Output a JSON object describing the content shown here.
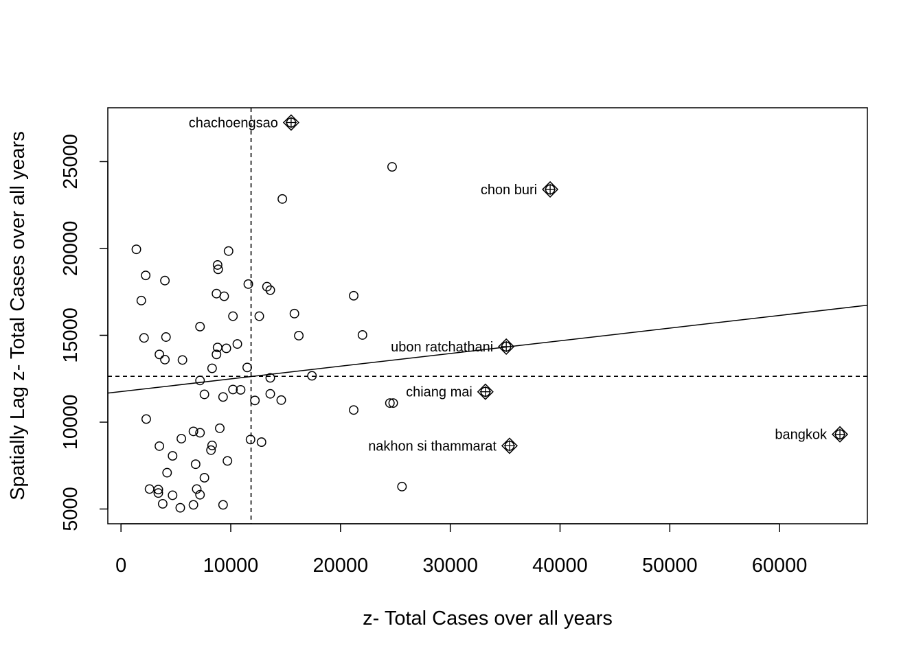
{
  "chart_data": {
    "type": "scatter",
    "title": "",
    "xlabel": "z- Total Cases over all years",
    "ylabel": "Spatially Lag z- Total Cases over all years",
    "xlim": [
      -1200,
      68000
    ],
    "ylim": [
      4150,
      28100
    ],
    "x_ticks": [
      0,
      10000,
      20000,
      30000,
      40000,
      50000,
      60000
    ],
    "x_tick_labels": [
      "0",
      "10000",
      "20000",
      "30000",
      "40000",
      "50000",
      "60000"
    ],
    "y_ticks": [
      5000,
      10000,
      15000,
      20000,
      25000
    ],
    "y_tick_labels": [
      "5000",
      "10000",
      "15000",
      "20000",
      "25000"
    ],
    "mean_x": 11850,
    "mean_y": 12640,
    "regression": {
      "intercept": 11760,
      "slope": 0.0731
    },
    "grid": false,
    "points": [
      {
        "x": 1400,
        "y": 19950
      },
      {
        "x": 1850,
        "y": 17000
      },
      {
        "x": 2250,
        "y": 18450
      },
      {
        "x": 2100,
        "y": 14850
      },
      {
        "x": 4000,
        "y": 18150
      },
      {
        "x": 4100,
        "y": 14900
      },
      {
        "x": 3500,
        "y": 13900
      },
      {
        "x": 4000,
        "y": 13600
      },
      {
        "x": 5600,
        "y": 13580
      },
      {
        "x": 2300,
        "y": 10180
      },
      {
        "x": 3500,
        "y": 8620
      },
      {
        "x": 5500,
        "y": 9050
      },
      {
        "x": 4700,
        "y": 8060
      },
      {
        "x": 4200,
        "y": 7090
      },
      {
        "x": 2600,
        "y": 6150
      },
      {
        "x": 3400,
        "y": 6120
      },
      {
        "x": 3400,
        "y": 5920
      },
      {
        "x": 3800,
        "y": 5300
      },
      {
        "x": 4700,
        "y": 5790
      },
      {
        "x": 5400,
        "y": 5070
      },
      {
        "x": 6600,
        "y": 5240
      },
      {
        "x": 6600,
        "y": 9470
      },
      {
        "x": 7200,
        "y": 9390
      },
      {
        "x": 6800,
        "y": 7580
      },
      {
        "x": 7600,
        "y": 6800
      },
      {
        "x": 6900,
        "y": 6150
      },
      {
        "x": 7200,
        "y": 5820
      },
      {
        "x": 8200,
        "y": 8390
      },
      {
        "x": 8300,
        "y": 8660
      },
      {
        "x": 9000,
        "y": 9650
      },
      {
        "x": 9700,
        "y": 7770
      },
      {
        "x": 9300,
        "y": 5240
      },
      {
        "x": 7200,
        "y": 12400
      },
      {
        "x": 7600,
        "y": 11600
      },
      {
        "x": 7200,
        "y": 15500
      },
      {
        "x": 8300,
        "y": 13100
      },
      {
        "x": 8700,
        "y": 13900
      },
      {
        "x": 8800,
        "y": 14300
      },
      {
        "x": 9600,
        "y": 14250
      },
      {
        "x": 8700,
        "y": 17400
      },
      {
        "x": 9400,
        "y": 17250
      },
      {
        "x": 8800,
        "y": 19050
      },
      {
        "x": 8850,
        "y": 18800
      },
      {
        "x": 9800,
        "y": 19850
      },
      {
        "x": 10200,
        "y": 16100
      },
      {
        "x": 10600,
        "y": 14500
      },
      {
        "x": 9300,
        "y": 11450
      },
      {
        "x": 10200,
        "y": 11880
      },
      {
        "x": 10900,
        "y": 11860
      },
      {
        "x": 11500,
        "y": 13150
      },
      {
        "x": 11600,
        "y": 17950
      },
      {
        "x": 12600,
        "y": 16100
      },
      {
        "x": 12200,
        "y": 11250
      },
      {
        "x": 11800,
        "y": 9000
      },
      {
        "x": 12800,
        "y": 8850
      },
      {
        "x": 13600,
        "y": 12550
      },
      {
        "x": 13600,
        "y": 11630
      },
      {
        "x": 14600,
        "y": 11270
      },
      {
        "x": 13300,
        "y": 17800
      },
      {
        "x": 13600,
        "y": 17600
      },
      {
        "x": 14700,
        "y": 22850
      },
      {
        "x": 15800,
        "y": 16250
      },
      {
        "x": 16200,
        "y": 14980
      },
      {
        "x": 17400,
        "y": 12670
      },
      {
        "x": 21200,
        "y": 17280
      },
      {
        "x": 22000,
        "y": 15020
      },
      {
        "x": 21200,
        "y": 10700
      },
      {
        "x": 24700,
        "y": 24700
      },
      {
        "x": 24500,
        "y": 11100
      },
      {
        "x": 24800,
        "y": 11100
      },
      {
        "x": 25600,
        "y": 6290
      }
    ],
    "influential_points": [
      {
        "label": "chachoengsao",
        "x": 15500,
        "y": 27250
      },
      {
        "label": "chon buri",
        "x": 39100,
        "y": 23400
      },
      {
        "label": "ubon ratchathani",
        "x": 35100,
        "y": 14350
      },
      {
        "label": "chiang mai",
        "x": 33200,
        "y": 11750
      },
      {
        "label": "nakhon si thammarat",
        "x": 35400,
        "y": 8640
      },
      {
        "label": "bangkok",
        "x": 65500,
        "y": 9300
      }
    ]
  }
}
